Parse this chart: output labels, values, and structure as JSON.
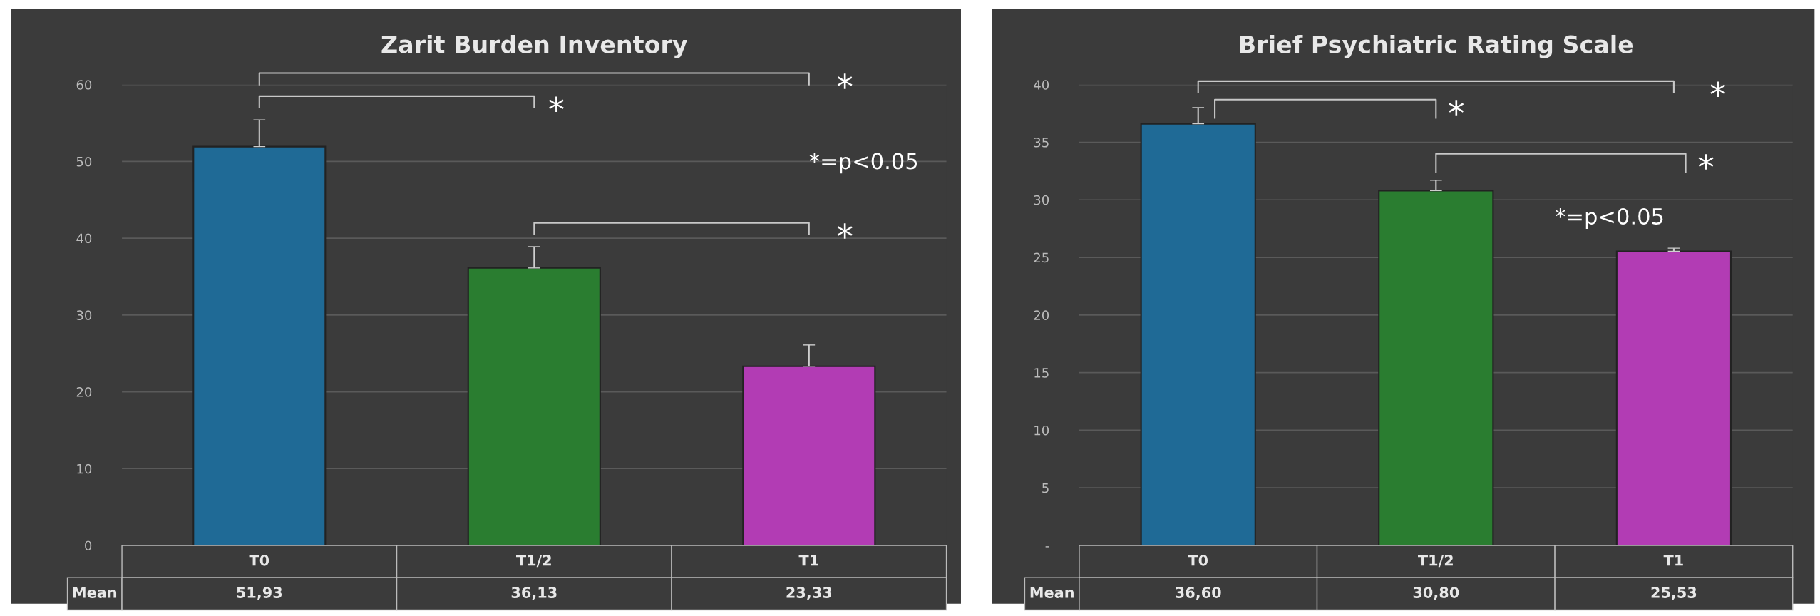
{
  "chart_data": [
    {
      "type": "bar",
      "title": "Zarit Burden Inventory",
      "categories": [
        "T0",
        "T1/2",
        "T1"
      ],
      "series": [
        {
          "name": "Mean",
          "values": [
            51.93,
            36.13,
            23.33
          ],
          "colors": [
            "#1f6a96",
            "#2a7d30",
            "#b23cb4"
          ],
          "value_labels": [
            "51,93",
            "36,13",
            "23,33"
          ],
          "errors": [
            [
              51.93,
              55.4
            ],
            [
              36.13,
              38.9
            ],
            [
              23.33,
              26.1
            ]
          ]
        }
      ],
      "ylim": [
        0,
        60
      ],
      "yticks": [
        0,
        10,
        20,
        30,
        40,
        50,
        60
      ],
      "grid": "y",
      "annotations": [
        "*",
        "*",
        "*",
        "*=p<0.05"
      ]
    },
    {
      "type": "bar",
      "title": "Brief Psychiatric Rating Scale",
      "categories": [
        "T0",
        "T1/2",
        "T1"
      ],
      "series": [
        {
          "name": "Mean",
          "values": [
            36.6,
            30.8,
            25.53
          ],
          "colors": [
            "#1f6a96",
            "#2a7d30",
            "#b23cb4"
          ],
          "value_labels": [
            "36,60",
            "30,80",
            "25,53"
          ],
          "errors": [
            [
              36.6,
              38.0
            ],
            [
              30.8,
              31.7
            ],
            [
              25.53,
              25.8
            ]
          ]
        }
      ],
      "ylim": [
        0,
        40
      ],
      "yticks": [
        {
          "value": 0,
          "label": "-"
        },
        5,
        10,
        15,
        20,
        25,
        30,
        35,
        40
      ],
      "grid": "y",
      "annotations": [
        "*",
        "*",
        "*",
        "*=p<0.05"
      ]
    }
  ]
}
